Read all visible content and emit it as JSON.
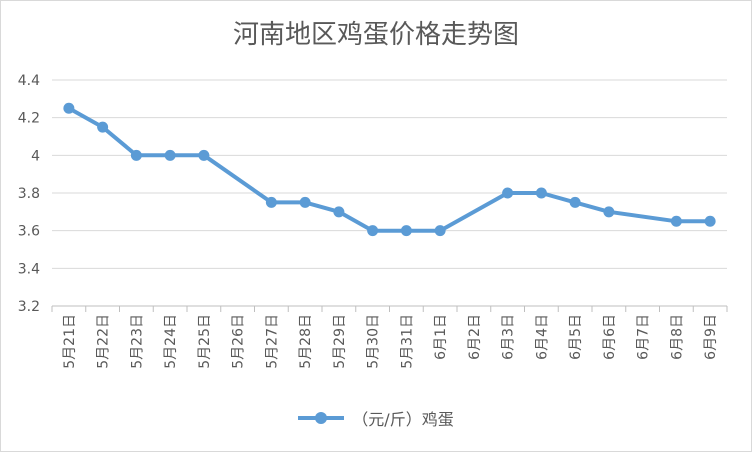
{
  "chart_data": {
    "type": "line",
    "title": "河南地区鸡蛋价格走势图",
    "xlabel": "",
    "ylabel": "",
    "categories": [
      "5月21日",
      "5月22日",
      "5月23日",
      "5月24日",
      "5月25日",
      "5月26日",
      "5月27日",
      "5月28日",
      "5月29日",
      "5月30日",
      "5月31日",
      "6月1日",
      "6月2日",
      "6月3日",
      "6月4日",
      "6月5日",
      "6月6日",
      "6月7日",
      "6月8日",
      "6月9日"
    ],
    "series": [
      {
        "name": "（元/斤）鸡蛋",
        "color": "#5B9BD5",
        "values": [
          4.25,
          4.15,
          4.0,
          4.0,
          4.0,
          null,
          3.75,
          3.75,
          3.7,
          3.6,
          3.6,
          3.6,
          null,
          3.8,
          3.8,
          3.75,
          3.7,
          null,
          3.65,
          3.65
        ]
      }
    ],
    "ylim": [
      3.2,
      4.4
    ],
    "yticks": [
      "3.2",
      "3.4",
      "3.6",
      "3.8",
      "4",
      "4.2",
      "4.4"
    ],
    "grid": true,
    "legend_position": "bottom"
  }
}
